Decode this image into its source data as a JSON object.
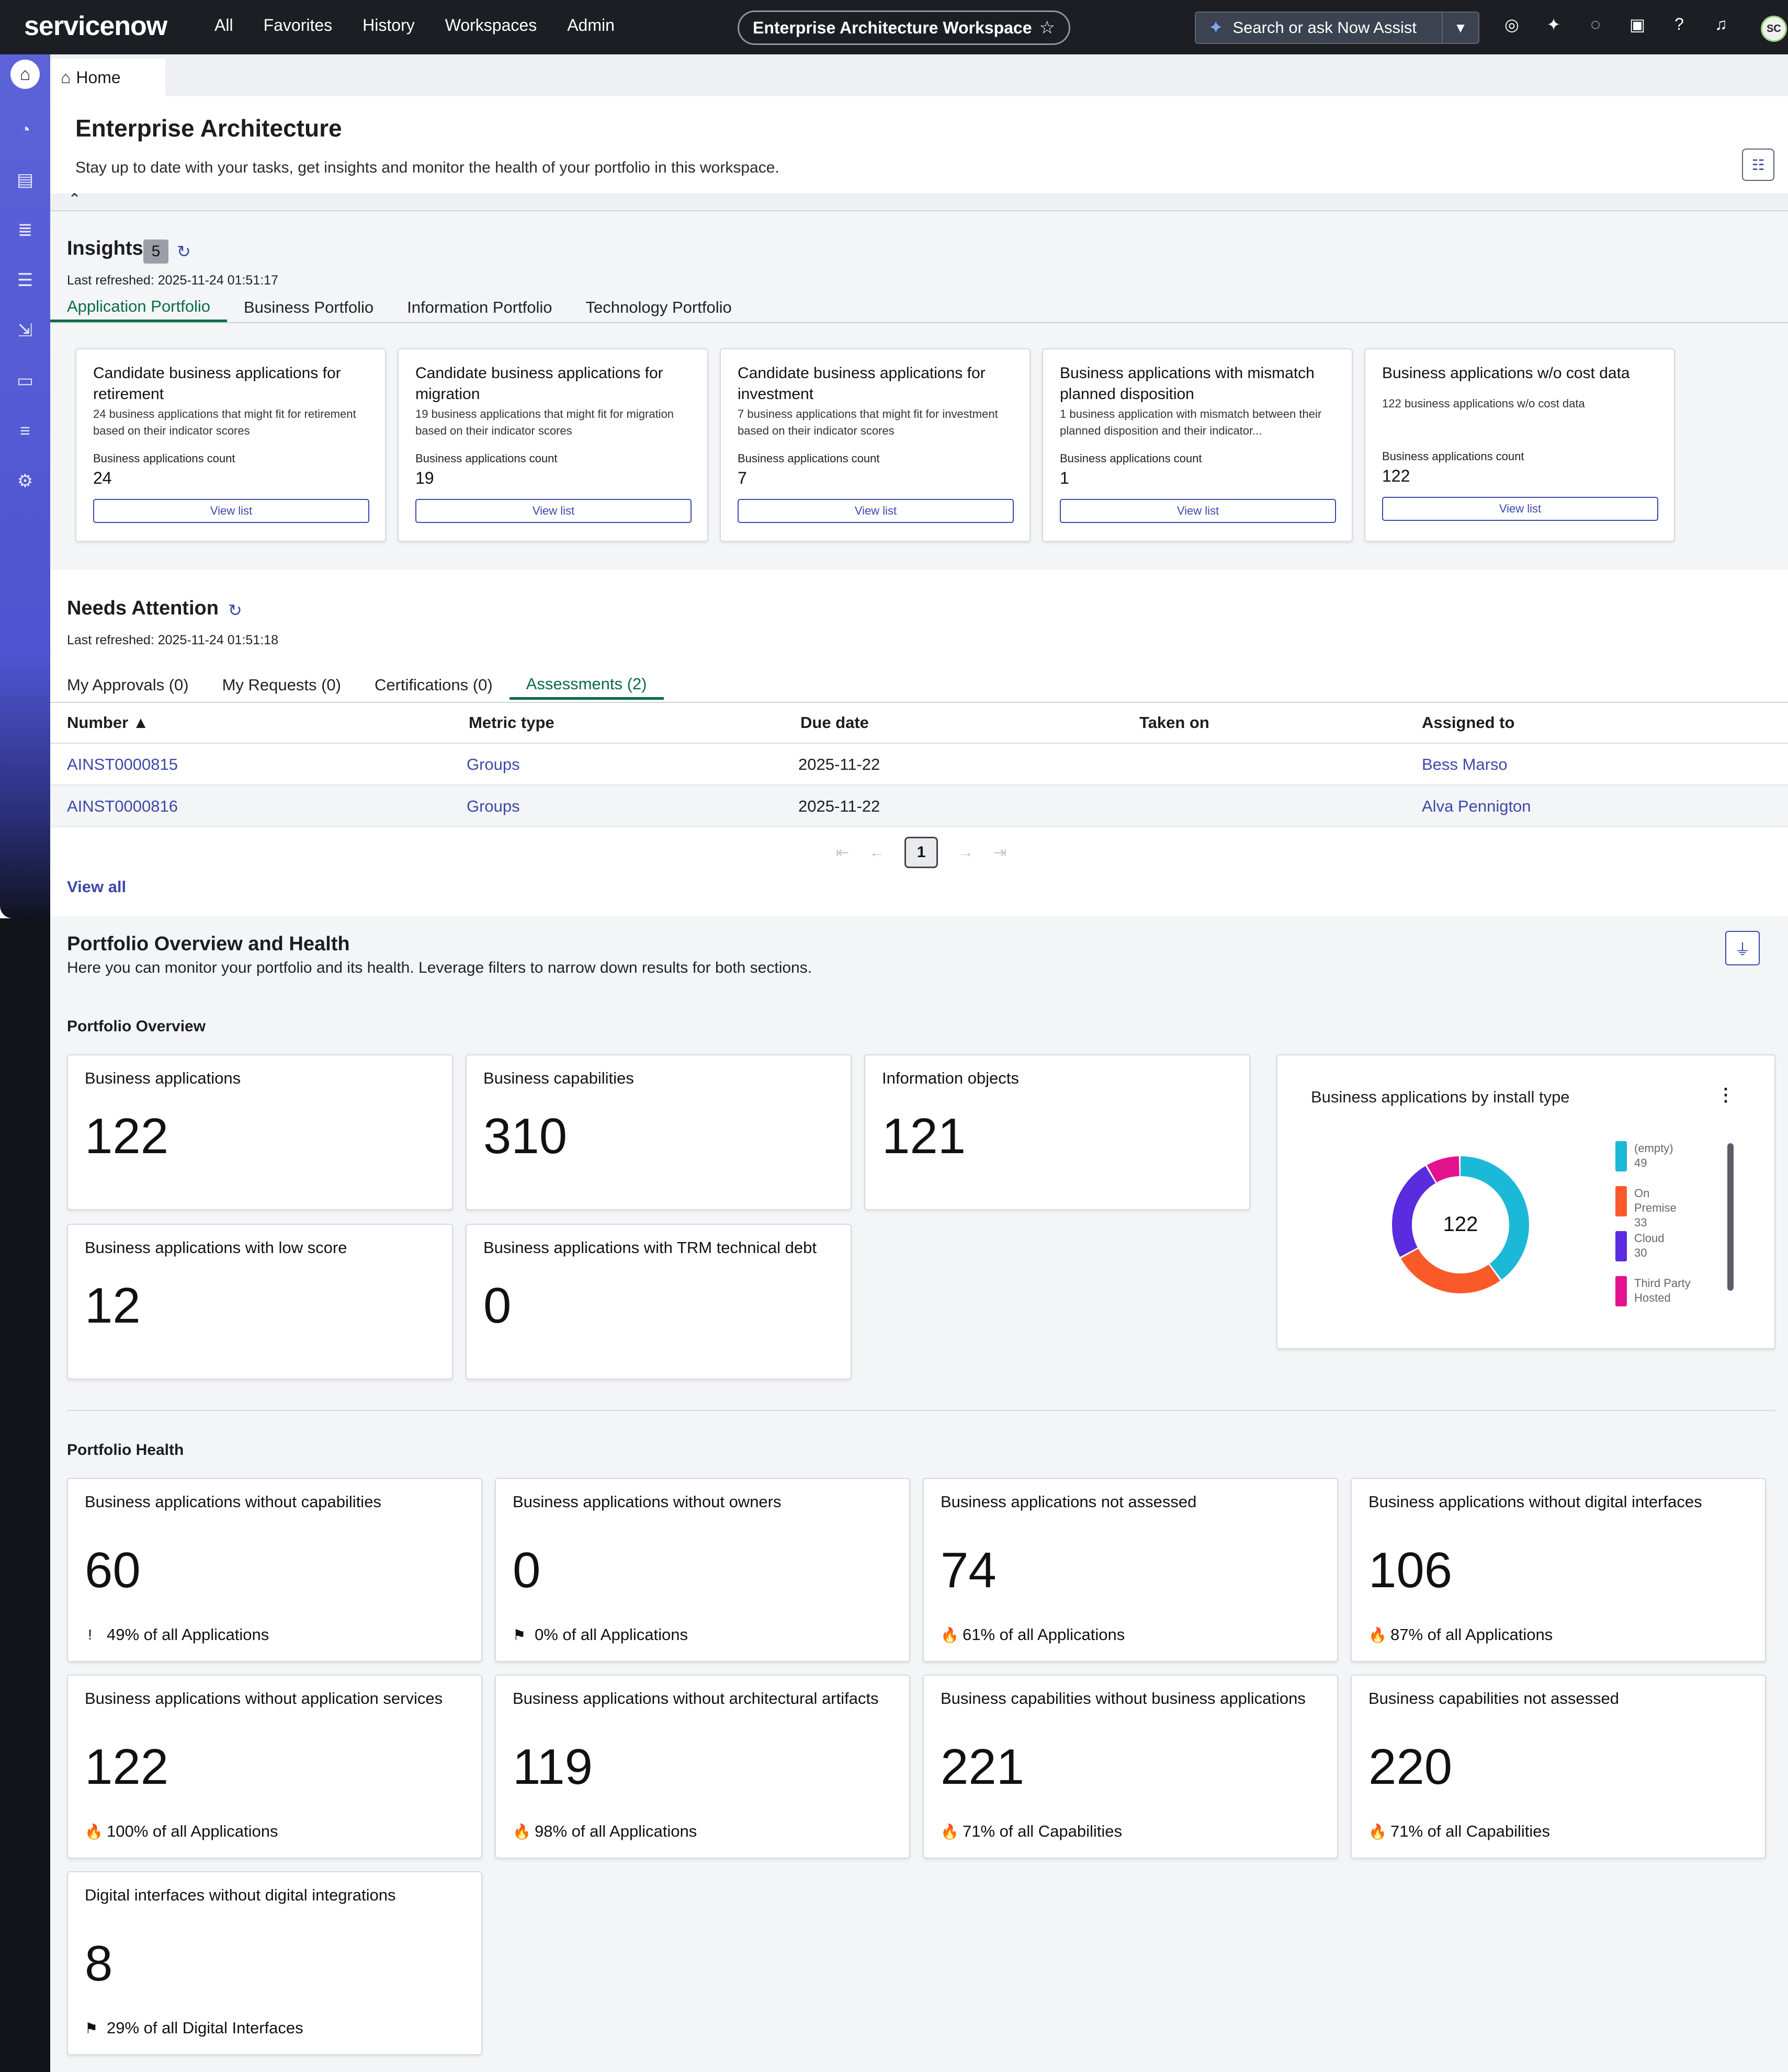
{
  "topbar": {
    "logo": "servicenow",
    "nav": [
      "All",
      "Favorites",
      "History",
      "Workspaces",
      "Admin"
    ],
    "workspace_pill": "Enterprise Architecture Workspace",
    "search_label": "Search or ask Now Assist",
    "avatar_initials": "SC"
  },
  "tab": {
    "home_label": "Home"
  },
  "header": {
    "title": "Enterprise Architecture",
    "subtitle": "Stay up to date with your tasks, get insights and monitor the health of your portfolio in this workspace."
  },
  "insights": {
    "title": "Insights",
    "count": "5",
    "last_refreshed": "Last refreshed: 2025-11-24 01:51:17",
    "tabs": [
      "Application Portfolio",
      "Business Portfolio",
      "Information Portfolio",
      "Technology Portfolio"
    ],
    "cards": [
      {
        "title": "Candidate business applications for retirement",
        "desc": "24 business applications that might fit for retirement based on their indicator scores",
        "count_label": "Business applications count",
        "count": "24",
        "button": "View list"
      },
      {
        "title": "Candidate business applications for migration",
        "desc": "19 business applications that might fit for migration based on their indicator scores",
        "count_label": "Business applications count",
        "count": "19",
        "button": "View list"
      },
      {
        "title": "Candidate business applications for investment",
        "desc": "7 business applications that might fit for investment based on their indicator scores",
        "count_label": "Business applications count",
        "count": "7",
        "button": "View list"
      },
      {
        "title": "Business applications with mismatch planned disposition",
        "desc": "1 business application with mismatch between their planned disposition and their indicator...",
        "count_label": "Business applications count",
        "count": "1",
        "button": "View list"
      },
      {
        "title": "Business applications w/o cost data",
        "desc": "122 business applications w/o cost data",
        "count_label": "Business applications count",
        "count": "122",
        "button": "View list"
      }
    ]
  },
  "needs_attention": {
    "title": "Needs Attention",
    "last_refreshed": "Last refreshed: 2025-11-24 01:51:18",
    "tabs": [
      "My Approvals (0)",
      "My Requests (0)",
      "Certifications (0)",
      "Assessments (2)"
    ],
    "columns": [
      "Number ▲",
      "Metric type",
      "Due date",
      "Taken on",
      "Assigned to"
    ],
    "rows": [
      {
        "number": "AINST0000815",
        "metric": "Groups",
        "due": "2025-11-22",
        "taken": "",
        "assigned": "Bess Marso"
      },
      {
        "number": "AINST0000816",
        "metric": "Groups",
        "due": "2025-11-22",
        "taken": "",
        "assigned": "Alva Pennigton"
      }
    ],
    "page": "1",
    "view_all": "View all"
  },
  "portfolio": {
    "title": "Portfolio Overview and Health",
    "desc": "Here you can monitor your portfolio and its health. Leverage filters to narrow down results for both sections.",
    "overview_title": "Portfolio Overview",
    "overview": [
      {
        "label": "Business applications",
        "value": "122"
      },
      {
        "label": "Business capabilities",
        "value": "310"
      },
      {
        "label": "Information objects",
        "value": "121"
      },
      {
        "label": "Business applications with low score",
        "value": "12"
      },
      {
        "label": "Business applications with TRM technical debt",
        "value": "0"
      }
    ],
    "donut": {
      "title": "Business applications by install type",
      "total": "122",
      "segments": [
        {
          "label": "(empty)",
          "value": 49,
          "color": "#1bb8d8"
        },
        {
          "label": "On Premise",
          "value": 33,
          "color": "#fa5a2a"
        },
        {
          "label": "Cloud",
          "value": 30,
          "color": "#5b2be0"
        },
        {
          "label": "Third Party Hosted",
          "value": 10,
          "color": "#e3138f"
        }
      ]
    },
    "health_title": "Portfolio Health",
    "health": [
      {
        "label": "Business applications without capabilities",
        "value": "60",
        "icon": "!",
        "foot": "49% of all Applications"
      },
      {
        "label": "Business applications without owners",
        "value": "0",
        "icon": "⚑",
        "foot": "0% of all Applications"
      },
      {
        "label": "Business applications not assessed",
        "value": "74",
        "icon": "🔥",
        "foot": "61% of all Applications"
      },
      {
        "label": "Business applications without digital interfaces",
        "value": "106",
        "icon": "🔥",
        "foot": "87% of all Applications"
      },
      {
        "label": "Business applications without application services",
        "value": "122",
        "icon": "🔥",
        "foot": "100% of all Applications"
      },
      {
        "label": "Business applications without architectural artifacts",
        "value": "119",
        "icon": "🔥",
        "foot": "98% of all Applications"
      },
      {
        "label": "Business capabilities without business applications",
        "value": "221",
        "icon": "🔥",
        "foot": "71% of all Capabilities"
      },
      {
        "label": "Business capabilities not assessed",
        "value": "220",
        "icon": "🔥",
        "foot": "71% of all Capabilities"
      },
      {
        "label": "Digital interfaces without digital integrations",
        "value": "8",
        "icon": "⚑",
        "foot": "29% of all Digital Interfaces"
      }
    ]
  }
}
